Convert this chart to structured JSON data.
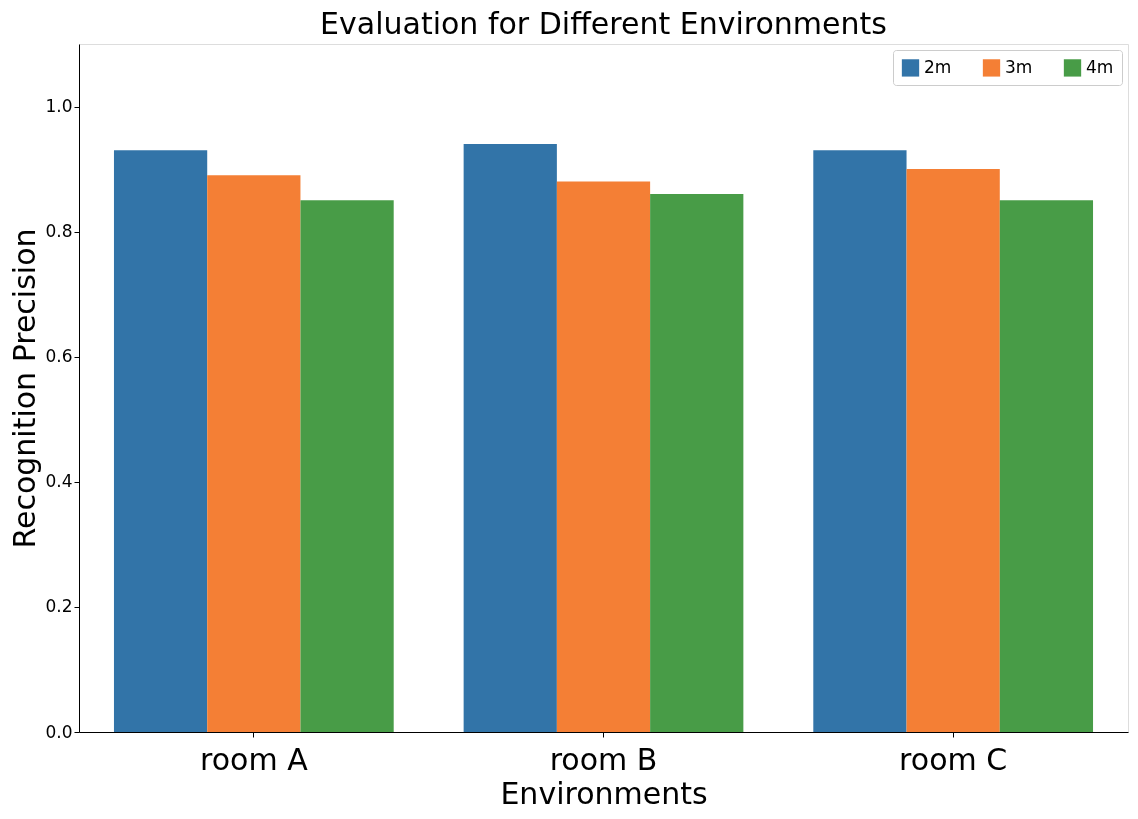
{
  "chart_data": {
    "type": "bar",
    "title": "Evaluation for Different Environments",
    "xlabel": "Environments",
    "ylabel": "Recognition Precision",
    "categories": [
      "room A",
      "room B",
      "room C"
    ],
    "series": [
      {
        "name": "2m",
        "color": "#3274a8",
        "values": [
          0.93,
          0.94,
          0.93
        ]
      },
      {
        "name": "3m",
        "color": "#f47f35",
        "values": [
          0.89,
          0.88,
          0.9
        ]
      },
      {
        "name": "4m",
        "color": "#489c47",
        "values": [
          0.85,
          0.86,
          0.85
        ]
      }
    ],
    "ylim": [
      0,
      1.1
    ],
    "yticks": [
      {
        "value": 0,
        "label": "0.0"
      },
      0.2,
      0.4,
      0.6,
      0.8,
      {
        "value": 1,
        "label": "1.0"
      }
    ],
    "grid": false,
    "legend": "top right"
  }
}
